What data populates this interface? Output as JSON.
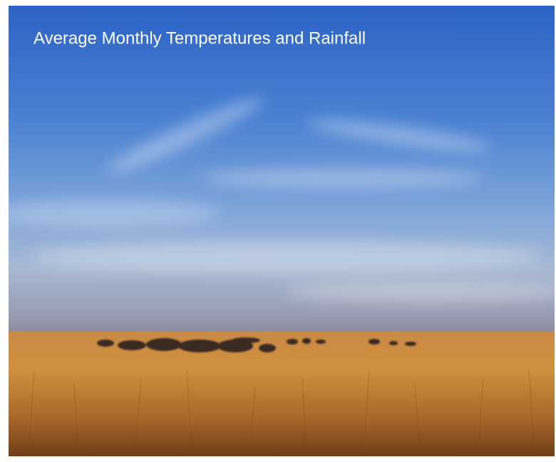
{
  "title": "Average Monthly Temperatures and Rainfall"
}
